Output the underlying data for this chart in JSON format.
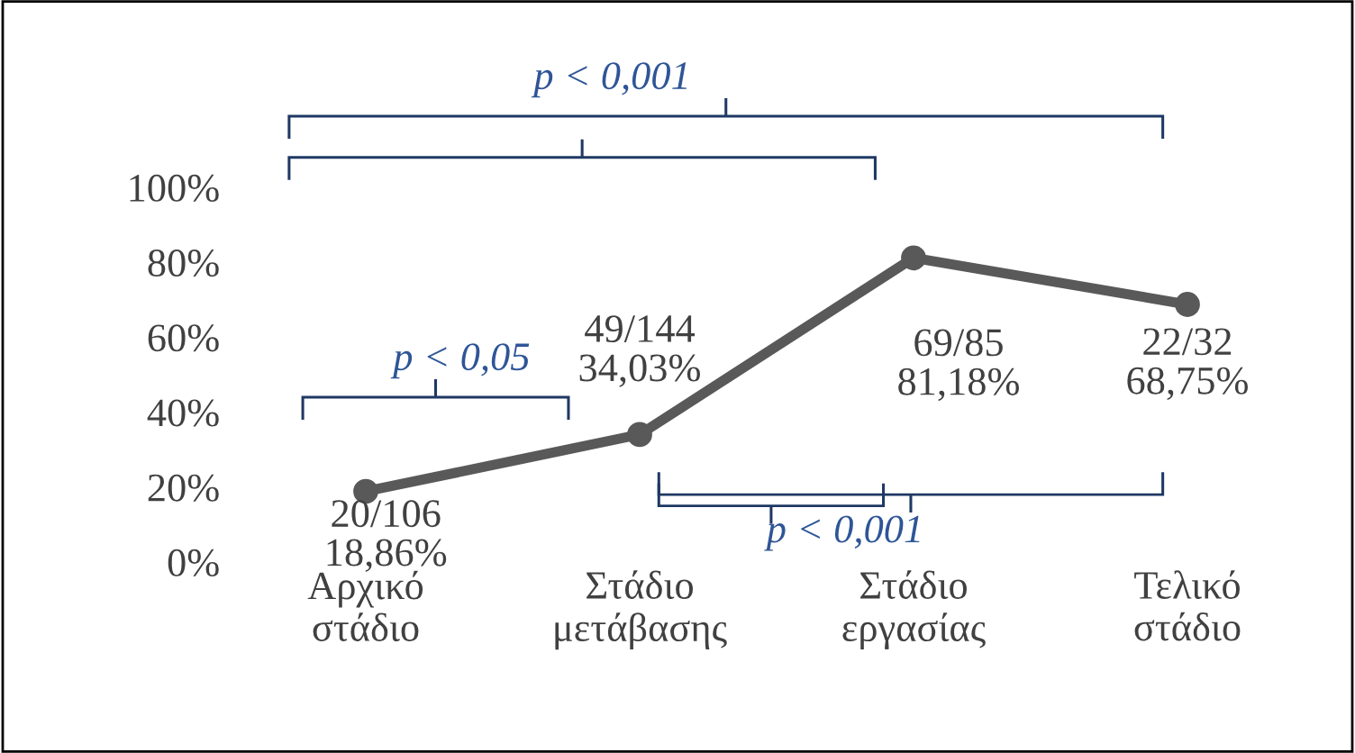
{
  "chart_data": {
    "type": "line",
    "categories": [
      "Αρχικό\nστάδιο",
      "Στάδιο\nμετάβασης",
      "Στάδιο\nεργασίας",
      "Τελικό\nστάδιο"
    ],
    "series": [
      {
        "color": "#595959",
        "values": [
          18.86,
          34.03,
          81.18,
          68.75
        ],
        "value_labels": [
          "20/106\n18,86%",
          "49/144\n34,03%",
          "69/85\n81,18%",
          "22/32\n68,75%"
        ]
      }
    ],
    "ylim": [
      0,
      100
    ],
    "yticks": [
      {
        "value": 0,
        "label": "0%"
      },
      {
        "value": 20,
        "label": "20%"
      },
      {
        "value": 40,
        "label": "40%"
      },
      {
        "value": 60,
        "label": "60%"
      },
      {
        "value": 80,
        "label": "80%"
      },
      {
        "value": 100,
        "label": "100%"
      }
    ],
    "annotations": [
      "p < 0,001",
      "p < 0,05",
      "p < 0,001"
    ],
    "marker": "circle",
    "line_style": "solid",
    "grid": false,
    "legend": false
  }
}
